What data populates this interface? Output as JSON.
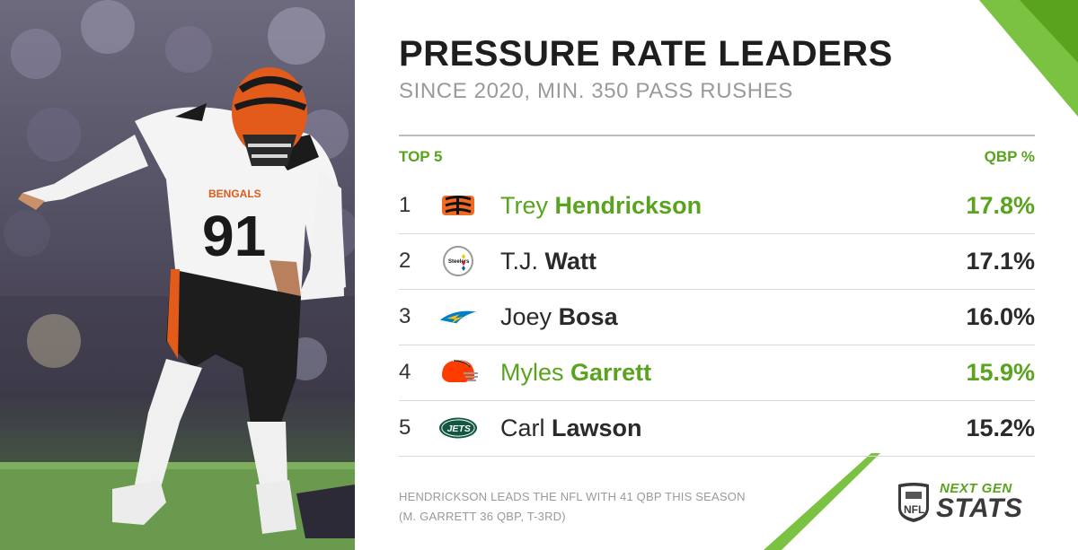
{
  "header": {
    "title": "PRESSURE RATE LEADERS",
    "subtitle": "SINCE 2020, MIN. 350 PASS RUSHES"
  },
  "table": {
    "left_label": "TOP 5",
    "right_label": "QBP %",
    "rows": [
      {
        "rank": "1",
        "team_logo": "bengals-logo",
        "first": "Trey",
        "last": "Hendrickson",
        "value": "17.8%",
        "highlight": true
      },
      {
        "rank": "2",
        "team_logo": "steelers-logo",
        "first": "T.J.",
        "last": "Watt",
        "value": "17.1%",
        "highlight": false
      },
      {
        "rank": "3",
        "team_logo": "chargers-logo",
        "first": "Joey",
        "last": "Bosa",
        "value": "16.0%",
        "highlight": false
      },
      {
        "rank": "4",
        "team_logo": "browns-logo",
        "first": "Myles",
        "last": "Garrett",
        "value": "15.9%",
        "highlight": true
      },
      {
        "rank": "5",
        "team_logo": "jets-logo",
        "first": "Carl",
        "last": "Lawson",
        "value": "15.2%",
        "highlight": false
      }
    ]
  },
  "photo": {
    "jersey_number": "91",
    "jersey_text": "BENGALS"
  },
  "footer": {
    "note_line1": "HENDRICKSON LEADS THE NFL WITH 41 QBP THIS SEASON",
    "note_line2": "(M. GARRETT 36 QBP, T-3RD)",
    "brand_top": "NEXT GEN",
    "brand_bottom": "STATS",
    "nfl_mark": "NFL"
  },
  "colors": {
    "accent_green": "#5aa31e",
    "text_dark": "#1e1e1e",
    "text_gray": "#9a9a9a"
  }
}
